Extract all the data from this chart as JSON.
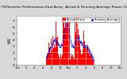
{
  "title": "Solar PV/Inverter Performance East Array  Actual & Running Average Power Output",
  "title_fontsize": 3.5,
  "bg_color": "#d8d8d8",
  "plot_bg_color": "#ffffff",
  "bar_color": "#ff0000",
  "avg_color": "#0000cc",
  "grid_color": "#cccccc",
  "ylabel": "kW",
  "ylabel_fontsize": 3.5,
  "ytick_labels": [
    "0",
    "1",
    "2",
    "3",
    "4",
    "5",
    "6",
    "7"
  ],
  "yticks": [
    0,
    1,
    2,
    3,
    4,
    5,
    6,
    7
  ],
  "ylim": [
    0,
    7.8
  ],
  "n_points": 288,
  "legend_items": [
    "---- Actual Power",
    ".... Running Average"
  ],
  "legend_colors": [
    "#ff0000",
    "#0000cc"
  ]
}
